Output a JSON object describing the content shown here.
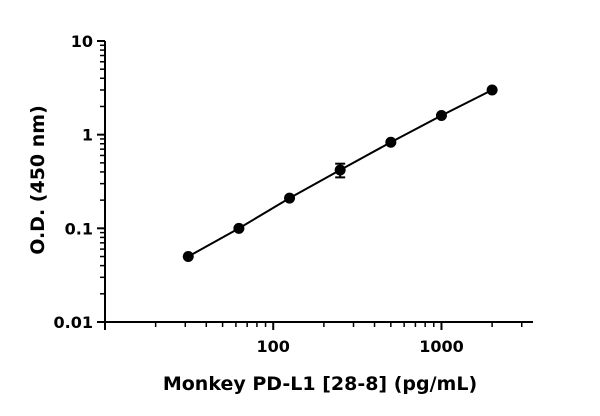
{
  "chart_data": {
    "type": "scatter",
    "xlabel": "Monkey PD-L1 [28-8] (pg/mL)",
    "ylabel": "O.D. (450 nm)",
    "xscale": "log",
    "yscale": "log",
    "xlim": [
      10,
      3500
    ],
    "ylim": [
      0.01,
      10
    ],
    "x_tick_labels": [
      {
        "value": 100,
        "label": "100"
      },
      {
        "value": 1000,
        "label": "1000"
      }
    ],
    "y_tick_labels": [
      {
        "value": 0.01,
        "label": "0.01"
      },
      {
        "value": 0.1,
        "label": "0.1"
      },
      {
        "value": 1,
        "label": "1"
      },
      {
        "value": 10,
        "label": "10"
      }
    ],
    "grid": false,
    "legend": "none",
    "series": [
      {
        "x": [
          31.25,
          62.5,
          125,
          250,
          500,
          1000,
          2000
        ],
        "y": [
          0.05,
          0.1,
          0.21,
          0.42,
          0.83,
          1.6,
          3.0
        ],
        "y_error": [
          0,
          0,
          0,
          0.07,
          0,
          0,
          0
        ],
        "fit_line": true
      }
    ],
    "colors": {
      "marker": "#000000",
      "line": "#000000",
      "axis": "#000000"
    }
  }
}
